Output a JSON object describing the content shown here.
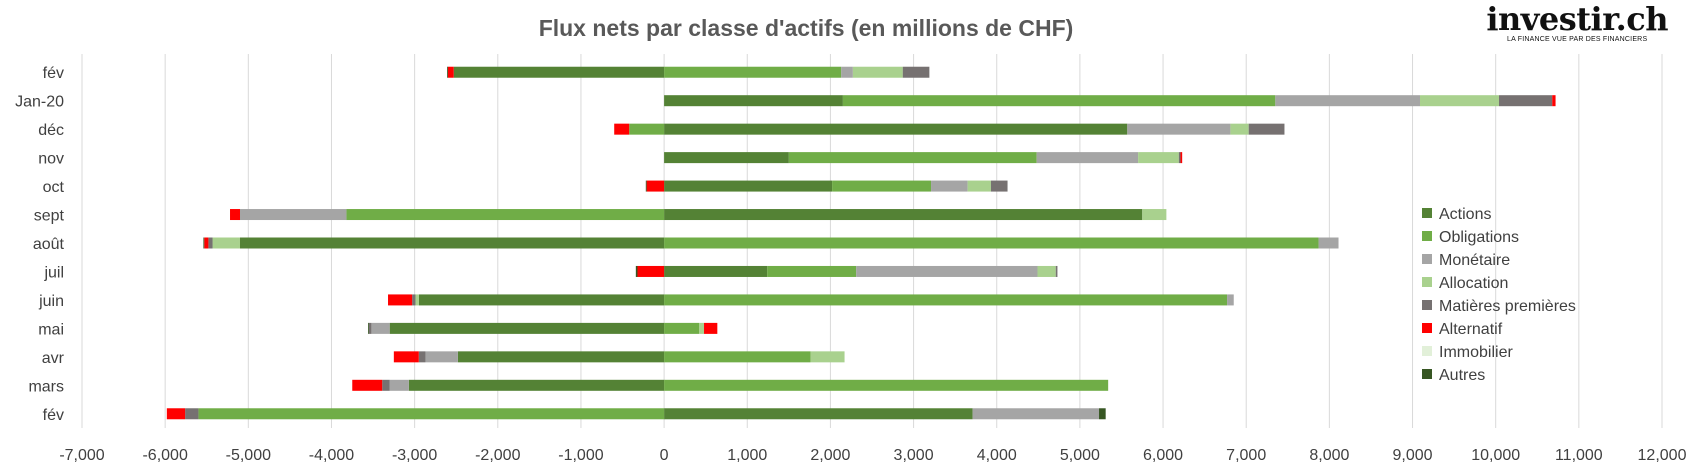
{
  "logo": {
    "name": "investir.ch",
    "tagline": "LA FINANCE VUE PAR DES FINANCIERS"
  },
  "chart_data": {
    "type": "bar",
    "orientation": "horizontal",
    "stacked": true,
    "title": "Flux nets par classe d'actifs (en millions de CHF)",
    "categories": [
      "fév",
      "Jan-20",
      "déc",
      "nov",
      "oct",
      "sept",
      "août",
      "juil",
      "juin",
      "mai",
      "avr",
      "mars",
      "fév"
    ],
    "xlim": [
      -7000,
      12000
    ],
    "x_ticks": [
      -7000,
      -6000,
      -5000,
      -4000,
      -3000,
      -2000,
      -1000,
      0,
      1000,
      2000,
      3000,
      4000,
      5000,
      6000,
      7000,
      8000,
      9000,
      10000,
      11000,
      12000
    ],
    "x_tick_labels": [
      "-7,000",
      "-6,000",
      "-5,000",
      "-4,000",
      "-3,000",
      "-2,000",
      "-1,000",
      "0",
      "1,000",
      "2,000",
      "3,000",
      "4,000",
      "5,000",
      "6,000",
      "7,000",
      "8,000",
      "9,000",
      "10,000",
      "11,000",
      "12,000"
    ],
    "grid": "vertical",
    "legend_position": "right",
    "series": [
      {
        "name": "Actions",
        "color": "#548235",
        "values": [
          -2530,
          2150,
          5570,
          1500,
          2020,
          5750,
          -5100,
          1240,
          -2950,
          -3300,
          -2480,
          -3070,
          3710
        ]
      },
      {
        "name": "Obligations",
        "color": "#70ad47",
        "values": [
          2130,
          5200,
          -420,
          2980,
          1190,
          -3820,
          7870,
          1070,
          6770,
          420,
          1760,
          5340,
          -5600
        ]
      },
      {
        "name": "Monétaire",
        "color": "#a5a5a5",
        "values": [
          140,
          1740,
          1240,
          1220,
          440,
          -1280,
          240,
          2180,
          80,
          -220,
          -390,
          -230,
          1520
        ]
      },
      {
        "name": "Allocation",
        "color": "#a9d18e",
        "values": [
          600,
          950,
          220,
          490,
          280,
          290,
          -330,
          220,
          -40,
          60,
          410,
          0,
          0
        ]
      },
      {
        "name": "Matières premières",
        "color": "#767171",
        "values": [
          320,
          640,
          430,
          20,
          200,
          0,
          -50,
          20,
          -40,
          -30,
          -80,
          -90,
          -160
        ]
      },
      {
        "name": "Alternatif",
        "color": "#ff0000",
        "values": [
          -70,
          40,
          -180,
          20,
          -210,
          -120,
          -50,
          -320,
          -290,
          160,
          -300,
          -360,
          -220
        ]
      },
      {
        "name": "Immobilier",
        "color": "#e2f0d9",
        "values": [
          0,
          0,
          0,
          0,
          0,
          0,
          0,
          0,
          0,
          0,
          0,
          0,
          0
        ]
      },
      {
        "name": "Autres",
        "color": "#375623",
        "values": [
          -10,
          0,
          0,
          0,
          -10,
          0,
          -10,
          -20,
          0,
          -10,
          0,
          0,
          80
        ]
      }
    ]
  }
}
